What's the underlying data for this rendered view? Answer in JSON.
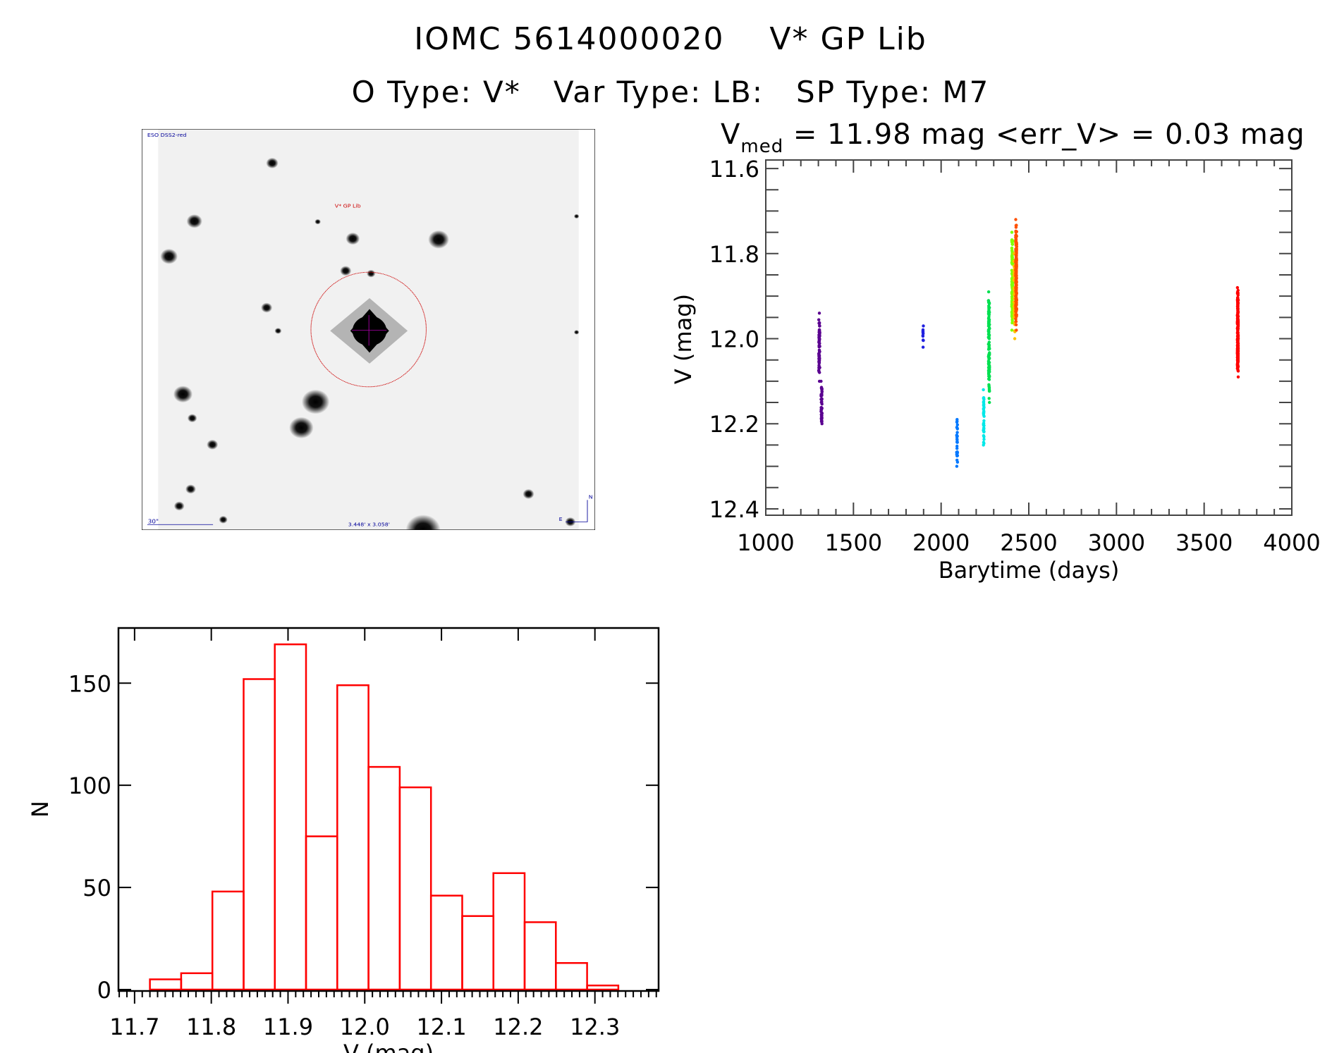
{
  "header": {
    "title": "IOMC 5614000020    V* GP Lib",
    "subtitle": "O Type: V*   Var Type: LB:   SP Type: M7"
  },
  "image_panel": {
    "survey_label": "ESO DSS2-red",
    "target_label": "V* GP Lib",
    "scale_label": "30\"",
    "fov_label": "3.448' x 3.058'",
    "north_label": "N",
    "east_label": "E",
    "colors": {
      "target": "#cc0000",
      "annotation": "#000099",
      "cross": "#aa00aa"
    }
  },
  "chart_data": [
    {
      "type": "scatter",
      "title_prefix": "V",
      "title_sub": "med",
      "title_rest": " = 11.98 mag <err_V> = 0.03 mag",
      "xlabel": "Barytime (days)",
      "ylabel": "V (mag)",
      "xlim": [
        1000,
        4000
      ],
      "ylim": [
        11.58,
        12.415
      ],
      "y_inverted": true,
      "xticks": [
        "1000",
        "1500",
        "2000",
        "2500",
        "3000",
        "3500",
        "4000"
      ],
      "xtick_values": [
        1000,
        1500,
        2000,
        2500,
        3000,
        3500,
        4000
      ],
      "yticks": [
        "11.6",
        "11.8",
        "12.0",
        "12.2",
        "12.4"
      ],
      "ytick_values": [
        11.6,
        11.8,
        12.0,
        12.2,
        12.4
      ],
      "clusters": [
        {
          "x": 1305,
          "xspread": 6,
          "ymin": 11.94,
          "ymax": 12.1,
          "n": 70,
          "color": "#5a0090"
        },
        {
          "x": 1318,
          "xspread": 6,
          "ymin": 12.1,
          "ymax": 12.2,
          "n": 50,
          "color": "#5a0090"
        },
        {
          "x": 1898,
          "xspread": 4,
          "ymin": 11.97,
          "ymax": 12.02,
          "n": 12,
          "color": "#2020e0"
        },
        {
          "x": 2091,
          "xspread": 5,
          "ymin": 12.19,
          "ymax": 12.3,
          "n": 30,
          "color": "#0078ff"
        },
        {
          "x": 2243,
          "xspread": 4,
          "ymin": 12.12,
          "ymax": 12.25,
          "n": 40,
          "color": "#00e8e8"
        },
        {
          "x": 2273,
          "xspread": 6,
          "ymin": 11.89,
          "ymax": 12.15,
          "n": 110,
          "color": "#00e050"
        },
        {
          "x": 2406,
          "xspread": 6,
          "ymin": 11.75,
          "ymax": 11.98,
          "n": 120,
          "color": "#80ff00"
        },
        {
          "x": 2418,
          "xspread": 6,
          "ymin": 11.8,
          "ymax": 12.0,
          "n": 40,
          "color": "#ffc000"
        },
        {
          "x": 2428,
          "xspread": 6,
          "ymin": 11.72,
          "ymax": 11.98,
          "n": 180,
          "color": "#ff5000"
        },
        {
          "x": 3692,
          "xspread": 5,
          "ymin": 11.88,
          "ymax": 12.09,
          "n": 200,
          "color": "#ff0000"
        }
      ]
    },
    {
      "type": "bar",
      "subtype": "histogram",
      "xlabel": "V (mag)",
      "ylabel": "N",
      "xlim": [
        11.679,
        12.383
      ],
      "ylim": [
        0,
        177
      ],
      "bin_start": 11.72,
      "bin_width": 0.0407,
      "values": [
        5,
        8,
        48,
        152,
        169,
        75,
        149,
        109,
        99,
        46,
        36,
        57,
        33,
        13,
        2
      ],
      "xticks": [
        "11.7",
        "11.8",
        "11.9",
        "12.0",
        "12.1",
        "12.2",
        "12.3"
      ],
      "xtick_values": [
        11.7,
        11.8,
        11.9,
        12.0,
        12.1,
        12.2,
        12.3
      ],
      "yticks": [
        "0",
        "50",
        "100",
        "150"
      ],
      "ytick_values": [
        0,
        50,
        100,
        150
      ],
      "bar_color": "#ff0000"
    }
  ]
}
